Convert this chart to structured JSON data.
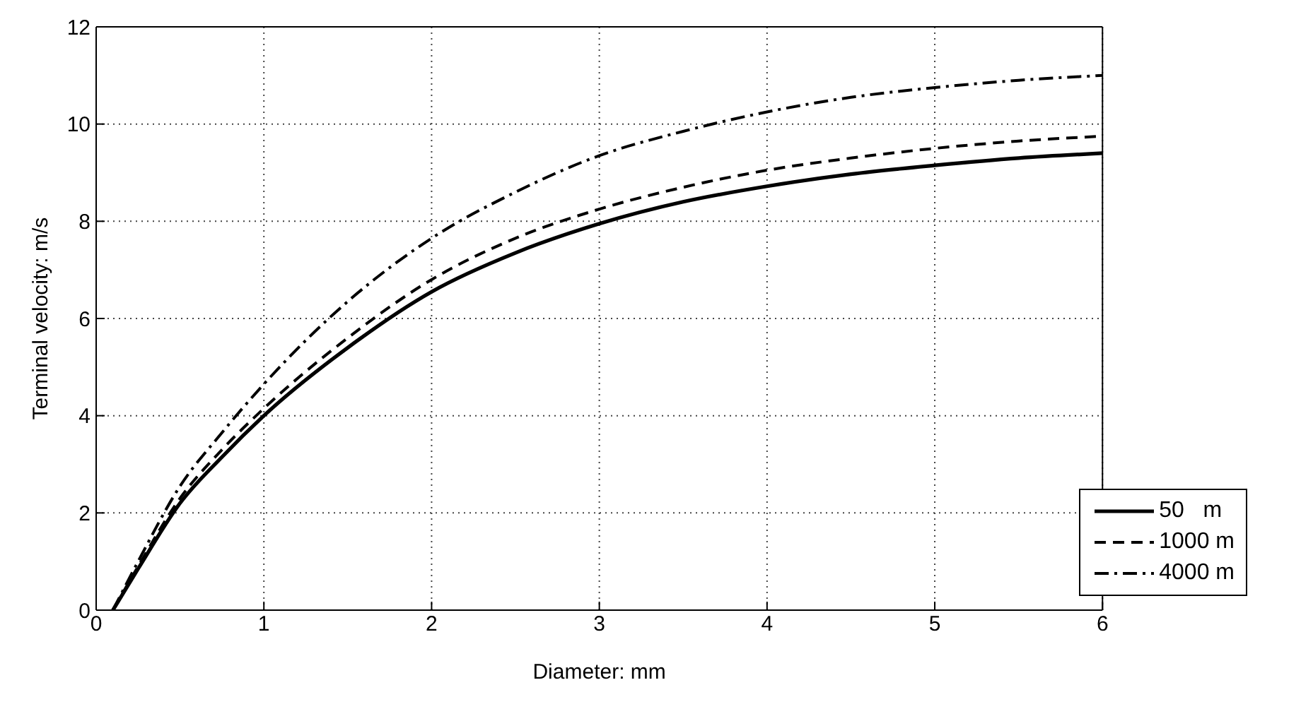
{
  "chart_data": {
    "type": "line",
    "xlabel": "Diameter: mm",
    "ylabel": "Terminal velocity: m/s",
    "x": [
      0.1,
      0.25,
      0.5,
      0.75,
      1,
      1.5,
      2,
      2.5,
      3,
      3.5,
      4,
      4.5,
      5,
      5.5,
      6
    ],
    "series": [
      {
        "name": "50   m",
        "color": "#000000",
        "line_style": "solid",
        "values": [
          0,
          0.85,
          2.2,
          3.15,
          4.0,
          5.4,
          6.55,
          7.35,
          7.95,
          8.4,
          8.72,
          8.97,
          9.15,
          9.3,
          9.4
        ]
      },
      {
        "name": "1000 m",
        "color": "#000000",
        "line_style": "dashed",
        "values": [
          0,
          0.9,
          2.3,
          3.3,
          4.15,
          5.6,
          6.8,
          7.65,
          8.25,
          8.7,
          9.05,
          9.3,
          9.5,
          9.65,
          9.75
        ]
      },
      {
        "name": "4000 m",
        "color": "#000000",
        "line_style": "dashdot",
        "values": [
          0,
          1.0,
          2.55,
          3.65,
          4.65,
          6.35,
          7.65,
          8.6,
          9.35,
          9.85,
          10.25,
          10.55,
          10.75,
          10.9,
          11.0
        ]
      }
    ],
    "xlim": [
      0,
      6
    ],
    "xticks": [
      0,
      1,
      2,
      3,
      4,
      5,
      6
    ],
    "ylim": [
      0,
      12
    ],
    "yticks": [
      0,
      2,
      4,
      6,
      8,
      10,
      12
    ],
    "grid": true,
    "legend": "bottom right"
  }
}
